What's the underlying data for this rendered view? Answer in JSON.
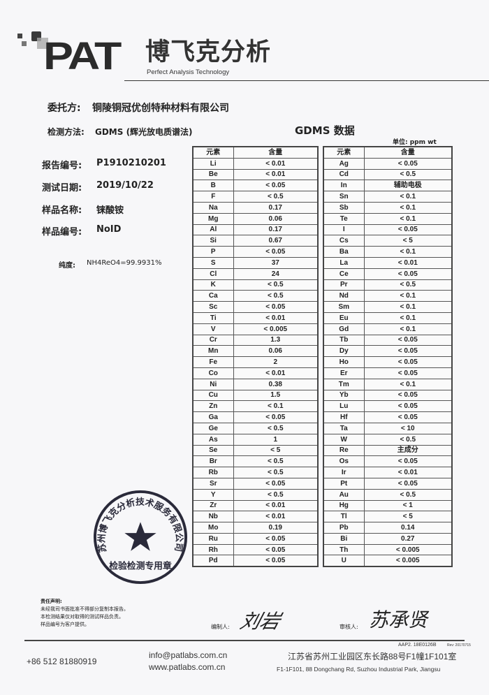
{
  "logo": {
    "brand": "PAT",
    "cn_name": "博飞克分析",
    "tagline": "Perfect Analysis Technology"
  },
  "info": {
    "client_label": "委托方:",
    "client": "铜陵铜冠优创特种材料有限公司",
    "method_label": "检测方法:",
    "method": "GDMS (辉光放电质谱法)",
    "report_label": "报告编号:",
    "report_no": "P1910210201",
    "date_label": "测试日期:",
    "date": "2019/10/22",
    "sample_name_label": "样品名称:",
    "sample_name": "铼酸铵",
    "sample_no_label": "样品编号:",
    "sample_no": "NoID",
    "purity_label": "纯度:",
    "purity": "NH4ReO4=99.9931%"
  },
  "table": {
    "title": "GDMS 数据",
    "unit": "单位:   ppm wt",
    "headers": [
      "元素",
      "含量"
    ],
    "left": [
      [
        "Li",
        "< 0.01"
      ],
      [
        "Be",
        "< 0.01"
      ],
      [
        "B",
        "< 0.05"
      ],
      [
        "F",
        "< 0.5"
      ],
      [
        "Na",
        "0.17"
      ],
      [
        "Mg",
        "0.06"
      ],
      [
        "Al",
        "0.17"
      ],
      [
        "Si",
        "0.67"
      ],
      [
        "P",
        "< 0.05"
      ],
      [
        "S",
        "37"
      ],
      [
        "Cl",
        "24"
      ],
      [
        "K",
        "< 0.5"
      ],
      [
        "Ca",
        "< 0.5"
      ],
      [
        "Sc",
        "< 0.05"
      ],
      [
        "Ti",
        "< 0.01"
      ],
      [
        "V",
        "< 0.005"
      ],
      [
        "Cr",
        "1.3"
      ],
      [
        "Mn",
        "0.06"
      ],
      [
        "Fe",
        "2"
      ],
      [
        "Co",
        "< 0.01"
      ],
      [
        "Ni",
        "0.38"
      ],
      [
        "Cu",
        "1.5"
      ],
      [
        "Zn",
        "< 0.1"
      ],
      [
        "Ga",
        "< 0.05"
      ],
      [
        "Ge",
        "< 0.5"
      ],
      [
        "As",
        "1"
      ],
      [
        "Se",
        "< 5"
      ],
      [
        "Br",
        "< 0.5"
      ],
      [
        "Rb",
        "< 0.5"
      ],
      [
        "Sr",
        "< 0.05"
      ],
      [
        "Y",
        "< 0.5"
      ],
      [
        "Zr",
        "< 0.01"
      ],
      [
        "Nb",
        "< 0.01"
      ],
      [
        "Mo",
        "0.19"
      ],
      [
        "Ru",
        "< 0.05"
      ],
      [
        "Rh",
        "< 0.05"
      ],
      [
        "Pd",
        "< 0.05"
      ]
    ],
    "right": [
      [
        "Ag",
        "< 0.05"
      ],
      [
        "Cd",
        "< 0.5"
      ],
      [
        "In",
        "辅助电极"
      ],
      [
        "Sn",
        "< 0.1"
      ],
      [
        "Sb",
        "< 0.1"
      ],
      [
        "Te",
        "< 0.1"
      ],
      [
        "I",
        "< 0.05"
      ],
      [
        "Cs",
        "< 5"
      ],
      [
        "Ba",
        "< 0.1"
      ],
      [
        "La",
        "< 0.01"
      ],
      [
        "Ce",
        "< 0.05"
      ],
      [
        "Pr",
        "< 0.5"
      ],
      [
        "Nd",
        "< 0.1"
      ],
      [
        "Sm",
        "< 0.1"
      ],
      [
        "Eu",
        "< 0.1"
      ],
      [
        "Gd",
        "< 0.1"
      ],
      [
        "Tb",
        "< 0.05"
      ],
      [
        "Dy",
        "< 0.05"
      ],
      [
        "Ho",
        "< 0.05"
      ],
      [
        "Er",
        "< 0.05"
      ],
      [
        "Tm",
        "< 0.1"
      ],
      [
        "Yb",
        "< 0.05"
      ],
      [
        "Lu",
        "< 0.05"
      ],
      [
        "Hf",
        "< 0.05"
      ],
      [
        "Ta",
        "< 10"
      ],
      [
        "W",
        "< 0.5"
      ],
      [
        "Re",
        "主成分"
      ],
      [
        "Os",
        "< 0.05"
      ],
      [
        "Ir",
        "< 0.01"
      ],
      [
        "Pt",
        "< 0.05"
      ],
      [
        "Au",
        "< 0.5"
      ],
      [
        "Hg",
        "< 1"
      ],
      [
        "Tl",
        "< 5"
      ],
      [
        "Pb",
        "0.14"
      ],
      [
        "Bi",
        "0.27"
      ],
      [
        "Th",
        "< 0.005"
      ],
      [
        "U",
        "< 0.005"
      ]
    ]
  },
  "stamp": {
    "ring_text": "苏州博飞克分析技术服务有限公司",
    "bottom_text": "检验检测专用章",
    "color": "#2a2a3a"
  },
  "disclaimer": {
    "title": "责任声明:",
    "lines": [
      "未经我司书面批准不得部分复制本报告。",
      "本检测结果仅对取得的测试样品负责。",
      "样品编号为客户提供。"
    ]
  },
  "signatures": {
    "compiler_label": "编制人:",
    "compiler": "刘岩",
    "reviewer_label": "审核人:",
    "reviewer": "苏承贤"
  },
  "footer": {
    "doc_code": "AAP2. 18E0126B",
    "rev": "Rev: 20170715",
    "phone": "+86 512 81880919",
    "email": "info@patlabs.com.cn",
    "website": "www.patlabs.com.cn",
    "address_cn": "江苏省苏州工业园区东长路88号F1幢1F101室",
    "address_en": "F1-1F101, 88 Dongchang Rd, Suzhou Industrial Park, Jiangsu"
  }
}
